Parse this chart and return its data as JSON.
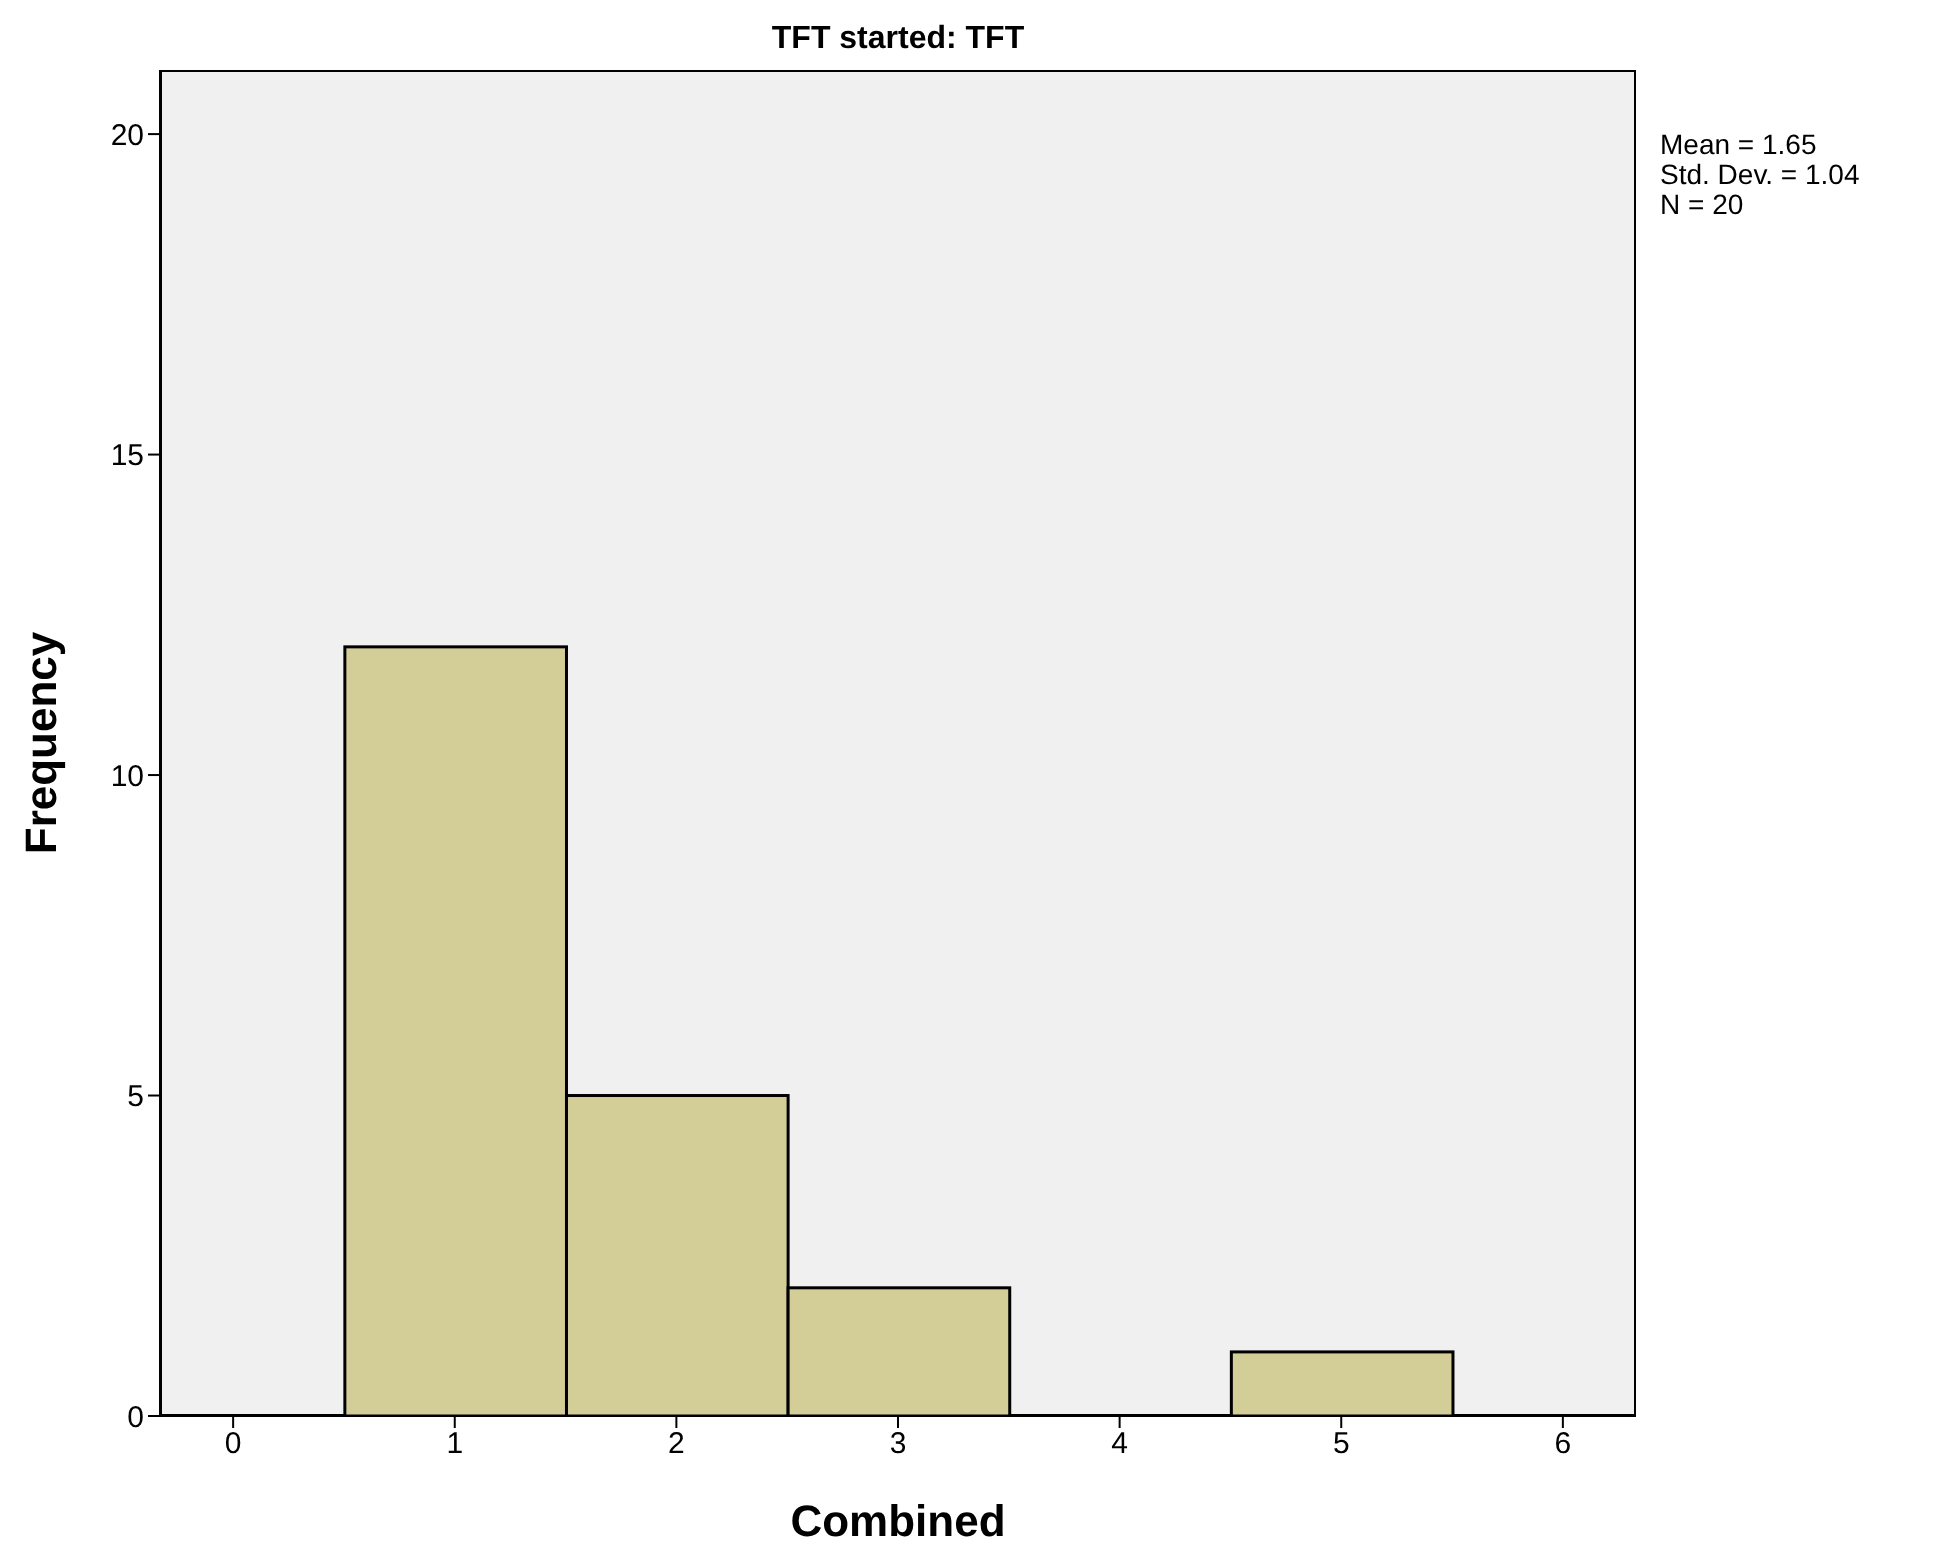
{
  "chart_data": {
    "type": "histogram",
    "title": "TFT started: TFT",
    "xlabel": "Combined",
    "ylabel": "Frequency",
    "annotations": [
      "Mean = 1.65",
      "Std. Dev. = 1.04",
      "N = 20"
    ],
    "bins": [
      0.5,
      1.5,
      2.5,
      3.5,
      4.5,
      5.5
    ],
    "values": [
      12,
      5,
      2,
      0,
      1
    ],
    "color": "#d3ce97",
    "xlim": [
      -0.33,
      6.33
    ],
    "xticks": [
      0,
      1,
      2,
      3,
      4,
      5,
      6
    ],
    "ylim": [
      0,
      21
    ],
    "yticks": [
      0,
      5,
      10,
      15,
      20
    ],
    "grid": false
  }
}
